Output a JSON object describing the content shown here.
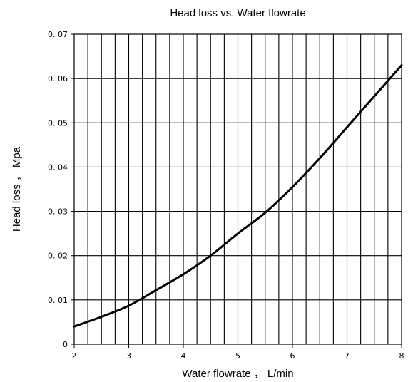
{
  "chart_data": {
    "type": "line",
    "title": "Head loss vs. Water flowrate",
    "xlabel": "Water flowrate ， L/min",
    "ylabel": "Head loss ， Mpa",
    "xlim": [
      2,
      8
    ],
    "ylim": [
      0,
      0.07
    ],
    "x_ticks": [
      2,
      3,
      4,
      5,
      6,
      7,
      8
    ],
    "x_tick_labels": [
      "2",
      "3",
      "4",
      "5",
      "6",
      "7",
      "8"
    ],
    "y_ticks": [
      0,
      0.01,
      0.02,
      0.03,
      0.04,
      0.05,
      0.06,
      0.07
    ],
    "y_tick_labels": [
      "0",
      "0. 01",
      "0. 02",
      "0. 03",
      "0. 04",
      "0. 05",
      "0. 06",
      "0. 07"
    ],
    "x_minor_step": 0.25,
    "grid": true,
    "series": [
      {
        "x": [
          2,
          2.5,
          3,
          3.5,
          4,
          4.5,
          5,
          5.5,
          6,
          6.5,
          7,
          7.5,
          8
        ],
        "y": [
          0.004,
          0.0062,
          0.0087,
          0.0122,
          0.0158,
          0.02,
          0.025,
          0.0297,
          0.0355,
          0.042,
          0.049,
          0.056,
          0.063
        ]
      }
    ]
  }
}
